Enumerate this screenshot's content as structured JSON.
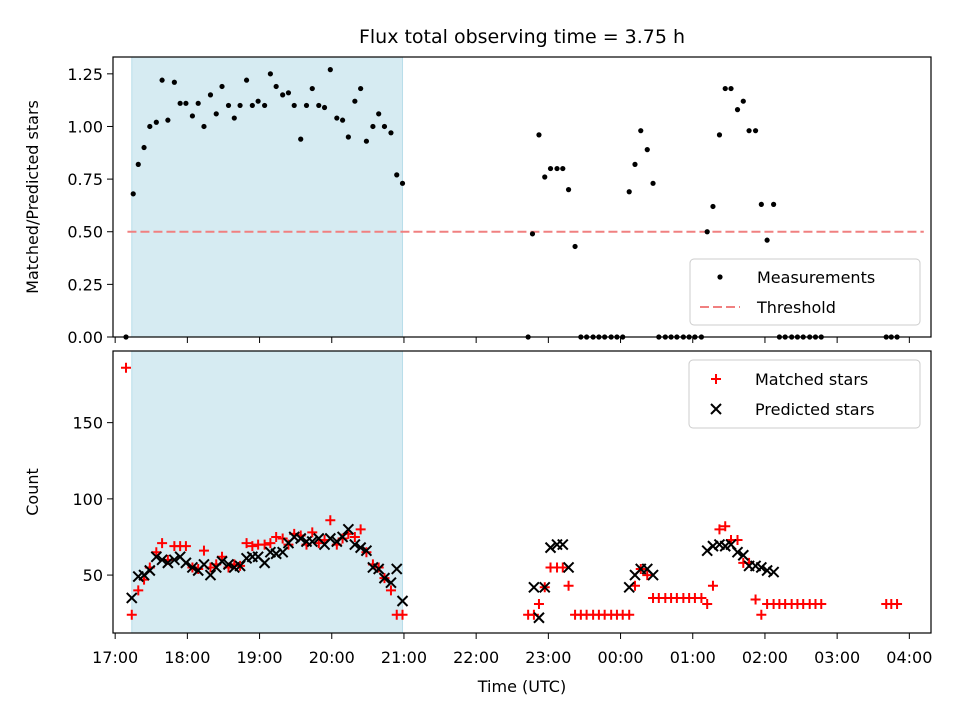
{
  "chart_data": {
    "type": "scatter",
    "title": "Flux total observing time = 3.75 h",
    "xlabel": "Time (UTC)",
    "time_axis": {
      "range_hours": [
        16.97,
        28.3
      ],
      "tick_values_hours": [
        17,
        18,
        19,
        20,
        21,
        22,
        23,
        24,
        25,
        26,
        27,
        28
      ],
      "tick_labels": [
        "17:00",
        "18:00",
        "19:00",
        "20:00",
        "21:00",
        "22:00",
        "23:00",
        "00:00",
        "01:00",
        "02:00",
        "03:00",
        "04:00"
      ]
    },
    "highlight_span_hours": [
      17.23,
      20.98
    ],
    "panels": [
      {
        "name": "ratio",
        "ylabel": "Matched/Predicted stars",
        "ylim": [
          0,
          1.33
        ],
        "yticks": [
          0.0,
          0.25,
          0.5,
          0.75,
          1.0,
          1.25
        ],
        "ytick_labels": [
          "0.00",
          "0.25",
          "0.50",
          "0.75",
          "1.00",
          "1.25"
        ],
        "legend": [
          "Measurements",
          "Threshold"
        ],
        "threshold": {
          "value": 0.5,
          "x_range_hours": [
            17.17,
            28.2
          ],
          "color": "#f08080"
        },
        "measurements": {
          "color": "#000000",
          "x": [
            17.15,
            17.25,
            17.32,
            17.4,
            17.48,
            17.57,
            17.65,
            17.73,
            17.82,
            17.9,
            17.98,
            18.07,
            18.15,
            18.23,
            18.32,
            18.4,
            18.48,
            18.57,
            18.65,
            18.73,
            18.82,
            18.9,
            18.98,
            19.07,
            19.15,
            19.23,
            19.32,
            19.4,
            19.48,
            19.57,
            19.65,
            19.73,
            19.82,
            19.9,
            19.98,
            20.07,
            20.15,
            20.23,
            20.32,
            20.4,
            20.48,
            20.57,
            20.65,
            20.73,
            20.82,
            20.9,
            20.98,
            22.72,
            22.78,
            22.87,
            22.95,
            23.03,
            23.12,
            23.2,
            23.28,
            23.37,
            23.45,
            23.53,
            23.62,
            23.7,
            23.78,
            23.87,
            23.95,
            24.03,
            24.12,
            24.2,
            24.28,
            24.37,
            24.45,
            24.53,
            24.62,
            24.7,
            24.78,
            24.87,
            24.95,
            25.03,
            25.12,
            25.2,
            25.28,
            25.37,
            25.45,
            25.53,
            25.62,
            25.7,
            25.78,
            25.87,
            25.95,
            26.03,
            26.12,
            26.2,
            26.28,
            26.37,
            26.45,
            26.53,
            26.62,
            26.7,
            26.78,
            27.68,
            27.75,
            27.83
          ],
          "y": [
            0.0,
            0.68,
            0.82,
            0.9,
            1.0,
            1.02,
            1.22,
            1.03,
            1.21,
            1.11,
            1.11,
            1.05,
            1.11,
            1.0,
            1.15,
            1.06,
            1.19,
            1.1,
            1.04,
            1.1,
            1.22,
            1.1,
            1.12,
            1.1,
            1.25,
            1.19,
            1.15,
            1.16,
            1.1,
            0.94,
            1.1,
            1.18,
            1.1,
            1.09,
            1.27,
            1.04,
            1.03,
            0.95,
            1.12,
            1.18,
            0.93,
            1.0,
            1.06,
            1.0,
            0.97,
            0.77,
            0.73,
            0.0,
            0.49,
            0.96,
            0.76,
            0.8,
            0.8,
            0.8,
            0.7,
            0.43,
            0.0,
            0.0,
            0.0,
            0.0,
            0.0,
            0.0,
            0.0,
            0.0,
            0.69,
            0.82,
            0.98,
            0.89,
            0.73,
            0.0,
            0.0,
            0.0,
            0.0,
            0.0,
            0.0,
            0.0,
            0.0,
            0.5,
            0.62,
            0.96,
            1.18,
            1.18,
            1.08,
            1.12,
            0.98,
            0.98,
            0.63,
            0.46,
            0.63,
            0.0,
            0.0,
            0.0,
            0.0,
            0.0,
            0.0,
            0.0,
            0.0,
            0.0,
            0.0,
            0.0
          ]
        }
      },
      {
        "name": "count",
        "ylabel": "Count",
        "ylim": [
          12,
          197
        ],
        "yticks": [
          50,
          100,
          150
        ],
        "ytick_labels": [
          "50",
          "100",
          "150"
        ],
        "legend": [
          "Matched stars",
          "Predicted stars"
        ],
        "series": [
          {
            "name": "Matched stars",
            "marker": "plus",
            "color": "#ff0000",
            "x": [
              17.15,
              17.23,
              17.32,
              17.4,
              17.48,
              17.57,
              17.65,
              17.73,
              17.82,
              17.9,
              17.98,
              18.07,
              18.15,
              18.23,
              18.32,
              18.4,
              18.48,
              18.57,
              18.65,
              18.73,
              18.82,
              18.9,
              18.98,
              19.07,
              19.15,
              19.23,
              19.32,
              19.4,
              19.48,
              19.57,
              19.65,
              19.73,
              19.82,
              19.9,
              19.98,
              20.07,
              20.15,
              20.23,
              20.32,
              20.4,
              20.48,
              20.57,
              20.65,
              20.73,
              20.82,
              20.9,
              20.98,
              22.72,
              22.8,
              22.87,
              22.95,
              23.03,
              23.12,
              23.2,
              23.28,
              23.37,
              23.45,
              23.53,
              23.62,
              23.7,
              23.78,
              23.87,
              23.95,
              24.03,
              24.12,
              24.2,
              24.28,
              24.37,
              24.45,
              24.53,
              24.62,
              24.7,
              24.78,
              24.87,
              24.95,
              25.03,
              25.12,
              25.2,
              25.28,
              25.37,
              25.45,
              25.53,
              25.62,
              25.7,
              25.78,
              25.87,
              25.95,
              26.03,
              26.12,
              26.2,
              26.28,
              26.37,
              26.45,
              26.53,
              26.62,
              26.7,
              26.78,
              27.68,
              27.75,
              27.83
            ],
            "y": [
              186,
              24,
              40,
              47,
              55,
              65,
              71,
              60,
              69,
              69,
              69,
              55,
              54,
              66,
              55,
              57,
              62,
              55,
              57,
              56,
              71,
              69,
              70,
              70,
              71,
              75,
              74,
              70,
              77,
              76,
              70,
              78,
              71,
              73,
              86,
              70,
              74,
              77,
              75,
              80,
              65,
              57,
              55,
              48,
              40,
              24,
              24,
              24,
              24,
              31,
              42,
              55,
              55,
              55,
              43,
              24,
              24,
              24,
              24,
              24,
              24,
              24,
              24,
              24,
              24,
              43,
              54,
              50,
              35,
              35,
              35,
              35,
              35,
              35,
              35,
              35,
              35,
              31,
              43,
              80,
              82,
              73,
              73,
              58,
              58,
              34,
              24,
              31,
              31,
              31,
              31,
              31,
              31,
              31,
              31,
              31,
              31,
              31,
              31,
              31
            ],
            "note": "values estimated from the plot"
          },
          {
            "name": "Predicted stars",
            "marker": "x",
            "color": "#000000",
            "x": [
              17.23,
              17.32,
              17.4,
              17.48,
              17.57,
              17.65,
              17.73,
              17.82,
              17.9,
              17.98,
              18.07,
              18.15,
              18.23,
              18.32,
              18.4,
              18.48,
              18.57,
              18.65,
              18.73,
              18.82,
              18.9,
              18.98,
              19.07,
              19.15,
              19.23,
              19.32,
              19.4,
              19.48,
              19.57,
              19.65,
              19.73,
              19.82,
              19.9,
              19.98,
              20.07,
              20.15,
              20.23,
              20.32,
              20.4,
              20.48,
              20.57,
              20.65,
              20.73,
              20.82,
              20.9,
              20.98,
              22.8,
              22.87,
              22.95,
              23.03,
              23.12,
              23.2,
              23.28,
              24.12,
              24.2,
              24.28,
              24.37,
              24.45,
              25.2,
              25.28,
              25.37,
              25.45,
              25.53,
              25.62,
              25.7,
              25.78,
              25.87,
              25.95,
              26.03,
              26.12
            ],
            "y": [
              35,
              49,
              50,
              53,
              62,
              60,
              58,
              60,
              62,
              58,
              55,
              53,
              57,
              50,
              55,
              59,
              57,
              55,
              56,
              61,
              62,
              62,
              58,
              65,
              64,
              65,
              71,
              75,
              74,
              72,
              72,
              74,
              70,
              74,
              72,
              75,
              80,
              70,
              68,
              66,
              55,
              54,
              48,
              45,
              54,
              33,
              42,
              22,
              42,
              68,
              70,
              70,
              55,
              42,
              50,
              54,
              54,
              50,
              66,
              69,
              70,
              69,
              70,
              65,
              63,
              56,
              56,
              55,
              53,
              52
            ],
            "note": "values estimated from the plot"
          }
        ]
      }
    ]
  }
}
